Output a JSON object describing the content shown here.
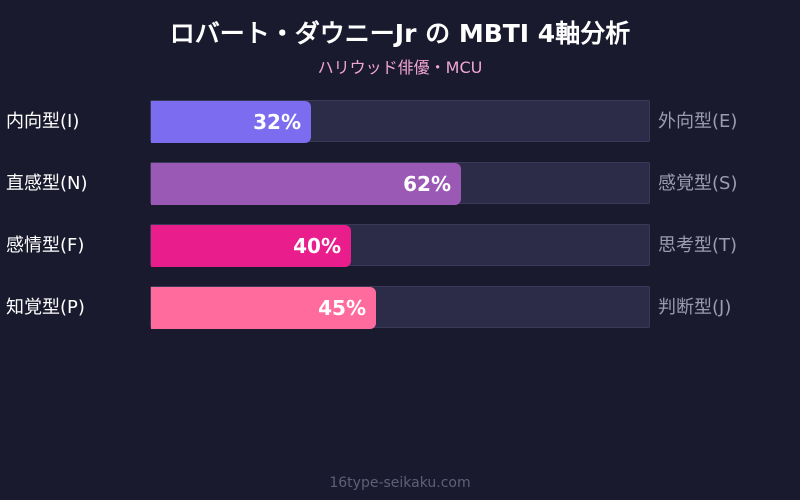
{
  "chart_data": {
    "type": "bar",
    "title": "ロバート・ダウニーJr の MBTI 4軸分析",
    "subtitle": "ハリウッド俳優・MCU",
    "ylim": [
      0,
      100
    ],
    "categories": [
      "内向型(I)",
      "直感型(N)",
      "感情型(F)",
      "知覚型(P)"
    ],
    "opposite_categories": [
      "外向型(E)",
      "感覚型(S)",
      "思考型(T)",
      "判断型(J)"
    ],
    "values": [
      32,
      62,
      40,
      45
    ],
    "value_labels": [
      "32%",
      "62%",
      "40%",
      "45%"
    ],
    "colors": [
      "#7b6cf0",
      "#9b59b6",
      "#e91e8c",
      "#ff6b9d"
    ]
  },
  "footer": "16type-seikaku.com"
}
